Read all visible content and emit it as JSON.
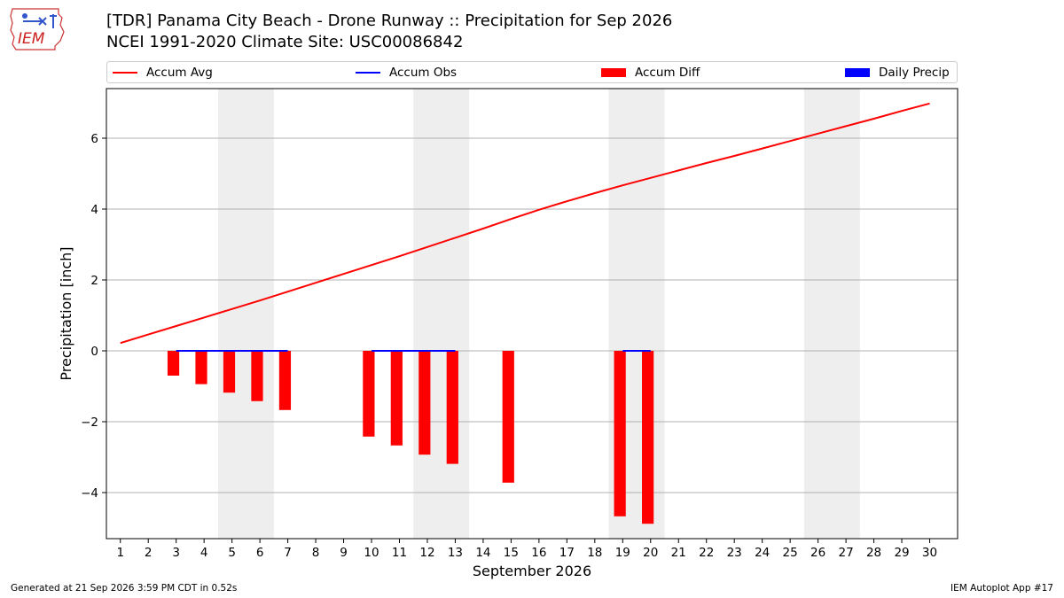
{
  "header": {
    "title_line1": "[TDR] Panama City Beach - Drone Runway :: Precipitation for Sep 2026",
    "title_line2": "NCEI 1991-2020 Climate Site: USC00086842",
    "logo_text": "IEM"
  },
  "footer": {
    "generated": "Generated at 21 Sep 2026 3:59 PM CDT in 0.52s",
    "app": "IEM Autoplot App #17"
  },
  "colors": {
    "accum_avg": "#ff0000",
    "accum_obs": "#0000ff",
    "accum_diff": "#ff0000",
    "daily_precip": "#0000ff",
    "weekend_shade": "#eeeeee",
    "grid": "#b0b0b0"
  },
  "chart_data": {
    "type": "line",
    "title": "[TDR] Panama City Beach - Drone Runway :: Precipitation for Sep 2026",
    "subtitle": "NCEI 1991-2020 Climate Site: USC00086842",
    "xlabel": "September 2026",
    "ylabel": "Precipitation [inch]",
    "xlim": [
      0.5,
      31
    ],
    "ylim": [
      -5.3,
      7.4
    ],
    "grid": "y-axis major gridlines",
    "legend_position": "top, above plot",
    "x_ticks": [
      1,
      2,
      3,
      4,
      5,
      6,
      7,
      8,
      9,
      10,
      11,
      12,
      13,
      14,
      15,
      16,
      17,
      18,
      19,
      20,
      21,
      22,
      23,
      24,
      25,
      26,
      27,
      28,
      29,
      30
    ],
    "y_ticks": [
      -4,
      -2,
      0,
      2,
      4,
      6
    ],
    "y_tick_labels": [
      "−4",
      "−2",
      "0",
      "2",
      "4",
      "6"
    ],
    "weekend_shading": [
      [
        5,
        6
      ],
      [
        12,
        13
      ],
      [
        19,
        20
      ],
      [
        26,
        27
      ]
    ],
    "series": [
      {
        "name": "Accum Avg",
        "kind": "line",
        "x": [
          1,
          2,
          3,
          4,
          5,
          6,
          7,
          8,
          9,
          10,
          11,
          12,
          13,
          14,
          15,
          16,
          17,
          18,
          19,
          20,
          21,
          22,
          23,
          24,
          25,
          26,
          27,
          28,
          29,
          30
        ],
        "values": [
          0.22,
          0.46,
          0.7,
          0.94,
          1.18,
          1.42,
          1.67,
          1.92,
          2.17,
          2.42,
          2.67,
          2.93,
          3.19,
          3.45,
          3.72,
          3.98,
          4.22,
          4.45,
          4.67,
          4.88,
          5.09,
          5.3,
          5.5,
          5.71,
          5.92,
          6.13,
          6.34,
          6.55,
          6.77,
          6.98
        ]
      },
      {
        "name": "Accum Obs",
        "kind": "line",
        "segments": [
          {
            "x": [
              3,
              4,
              5,
              6,
              7
            ],
            "values": [
              0,
              0,
              0,
              0,
              0
            ]
          },
          {
            "x": [
              10,
              11,
              12,
              13
            ],
            "values": [
              0,
              0,
              0,
              0
            ]
          },
          {
            "x": [
              19,
              20
            ],
            "values": [
              0,
              0
            ]
          }
        ]
      },
      {
        "name": "Accum Diff",
        "kind": "bar",
        "x": [
          2.9,
          3.9,
          4.9,
          5.9,
          6.9,
          9.9,
          10.9,
          11.9,
          12.9,
          14.9,
          18.9,
          19.9
        ],
        "values": [
          -0.7,
          -0.94,
          -1.18,
          -1.42,
          -1.67,
          -2.42,
          -2.67,
          -2.93,
          -3.19,
          -3.72,
          -4.67,
          -4.88
        ]
      },
      {
        "name": "Daily Precip",
        "kind": "bar",
        "x": [],
        "values": []
      }
    ]
  }
}
